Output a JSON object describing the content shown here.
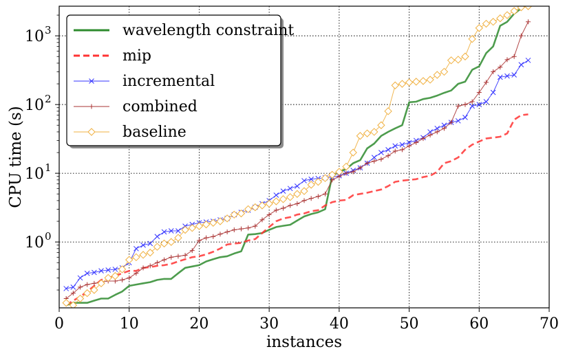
{
  "chart_data": {
    "type": "line",
    "title": "",
    "xlabel": "instances",
    "ylabel": "CPU time (s)",
    "xlim": [
      0,
      70
    ],
    "ylim": [
      0.11,
      2700
    ],
    "yscale": "log",
    "grid": true,
    "legend_position": "top-left",
    "x_ticks": [
      {
        "value": 0,
        "label": "0"
      },
      {
        "value": 10,
        "label": "10"
      },
      {
        "value": 20,
        "label": "20"
      },
      {
        "value": 30,
        "label": "30"
      },
      {
        "value": 40,
        "label": "40"
      },
      {
        "value": 50,
        "label": "50"
      },
      {
        "value": 60,
        "label": "60"
      },
      {
        "value": 70,
        "label": "70"
      }
    ],
    "y_ticks": [
      {
        "value": 1,
        "base": "10",
        "exp": "0"
      },
      {
        "value": 10,
        "base": "10",
        "exp": "1"
      },
      {
        "value": 100,
        "base": "10",
        "exp": "2"
      },
      {
        "value": 1000,
        "base": "10",
        "exp": "3"
      }
    ],
    "series": [
      {
        "name": "wavelength constraint",
        "color": "#2e8b2e",
        "style": "solid",
        "marker": "none",
        "x": [
          1,
          2,
          3,
          4,
          5,
          6,
          7,
          8,
          9,
          10,
          11,
          12,
          13,
          14,
          15,
          16,
          17,
          18,
          19,
          20,
          21,
          22,
          23,
          24,
          25,
          26,
          27,
          28,
          29,
          30,
          31,
          32,
          33,
          34,
          35,
          36,
          37,
          38,
          39,
          40,
          41,
          42,
          43,
          44,
          45,
          46,
          47,
          48,
          49,
          50,
          51,
          52,
          53,
          54,
          55,
          56,
          57,
          58,
          59,
          60,
          61,
          62,
          63,
          64,
          65,
          66
        ],
        "y": [
          0.12,
          0.13,
          0.13,
          0.13,
          0.14,
          0.15,
          0.15,
          0.17,
          0.19,
          0.23,
          0.24,
          0.25,
          0.26,
          0.28,
          0.29,
          0.29,
          0.35,
          0.42,
          0.44,
          0.46,
          0.52,
          0.56,
          0.6,
          0.62,
          0.68,
          0.73,
          1.28,
          1.3,
          1.35,
          1.5,
          1.65,
          1.72,
          1.78,
          2.05,
          2.35,
          2.55,
          2.7,
          3.0,
          9.2,
          10.5,
          11.5,
          14,
          15.5,
          23,
          27,
          35,
          40,
          45,
          50,
          108,
          110,
          120,
          125,
          135,
          148,
          160,
          200,
          215,
          320,
          360,
          560,
          700,
          1400,
          1600,
          2100,
          2500
        ]
      },
      {
        "name": "mip",
        "color": "#ff3333",
        "style": "dashed",
        "marker": "none",
        "x": [
          1,
          2,
          3,
          4,
          5,
          6,
          7,
          8,
          9,
          10,
          11,
          12,
          13,
          14,
          15,
          16,
          17,
          18,
          19,
          20,
          21,
          22,
          23,
          24,
          25,
          26,
          27,
          28,
          29,
          30,
          31,
          32,
          33,
          34,
          35,
          36,
          37,
          38,
          39,
          40,
          41,
          42,
          43,
          44,
          45,
          46,
          47,
          48,
          49,
          50,
          51,
          52,
          53,
          54,
          55,
          56,
          57,
          58,
          59,
          60,
          61,
          62,
          63,
          64,
          65,
          66,
          67
        ],
        "y": [
          0.12,
          0.14,
          0.16,
          0.19,
          0.23,
          0.28,
          0.3,
          0.32,
          0.35,
          0.38,
          0.38,
          0.42,
          0.43,
          0.45,
          0.46,
          0.48,
          0.52,
          0.56,
          0.6,
          0.62,
          0.66,
          0.72,
          0.8,
          0.92,
          0.95,
          0.97,
          1.05,
          1.1,
          1.35,
          1.65,
          2.0,
          2.2,
          2.3,
          2.5,
          2.6,
          2.8,
          2.9,
          3.4,
          3.8,
          4.0,
          4.1,
          4.8,
          5.0,
          5.2,
          5.5,
          5.8,
          6.5,
          7.5,
          7.8,
          8.0,
          8.2,
          8.8,
          9.2,
          10.5,
          14,
          15,
          17,
          22,
          26,
          29,
          32,
          33,
          34,
          38,
          60,
          70,
          72
        ]
      },
      {
        "name": "incremental",
        "color": "#3333ff",
        "style": "solid",
        "marker": "x",
        "x": [
          1,
          2,
          3,
          4,
          5,
          6,
          7,
          8,
          9,
          10,
          11,
          12,
          13,
          14,
          15,
          16,
          17,
          18,
          19,
          20,
          21,
          22,
          23,
          24,
          25,
          26,
          27,
          28,
          29,
          30,
          31,
          32,
          33,
          34,
          35,
          36,
          37,
          38,
          39,
          40,
          41,
          42,
          43,
          44,
          45,
          46,
          47,
          48,
          49,
          50,
          51,
          52,
          53,
          54,
          55,
          56,
          57,
          58,
          59,
          60,
          61,
          62,
          63,
          64,
          65,
          66,
          67
        ],
        "y": [
          0.21,
          0.22,
          0.3,
          0.35,
          0.36,
          0.38,
          0.39,
          0.4,
          0.42,
          0.5,
          0.8,
          0.9,
          0.95,
          1.2,
          1.4,
          1.45,
          1.45,
          1.7,
          1.8,
          1.9,
          1.95,
          2.0,
          2.1,
          2.2,
          2.5,
          2.7,
          2.9,
          3.2,
          3.6,
          4.0,
          4.8,
          5.5,
          6.0,
          6.5,
          7.8,
          8.2,
          8.4,
          8.6,
          8.8,
          9.2,
          10,
          11,
          12,
          14,
          17,
          20,
          22,
          25,
          26,
          28,
          30,
          33,
          40,
          45,
          50,
          55,
          58,
          65,
          95,
          100,
          110,
          150,
          250,
          260,
          270,
          380,
          440
        ]
      },
      {
        "name": "combined",
        "color": "#aa3333",
        "style": "solid",
        "marker": "+",
        "x": [
          1,
          2,
          3,
          4,
          5,
          6,
          7,
          8,
          9,
          10,
          11,
          12,
          13,
          14,
          15,
          16,
          17,
          18,
          19,
          20,
          21,
          22,
          23,
          24,
          25,
          26,
          27,
          28,
          29,
          30,
          31,
          32,
          33,
          34,
          35,
          36,
          37,
          38,
          39,
          40,
          41,
          42,
          43,
          44,
          45,
          46,
          47,
          48,
          49,
          50,
          51,
          52,
          53,
          54,
          55,
          56,
          57,
          58,
          59,
          60,
          61,
          62,
          63,
          64,
          65,
          66,
          67
        ],
        "y": [
          0.15,
          0.18,
          0.22,
          0.24,
          0.25,
          0.26,
          0.27,
          0.27,
          0.28,
          0.3,
          0.35,
          0.42,
          0.45,
          0.5,
          0.55,
          0.6,
          0.62,
          0.64,
          0.75,
          1.05,
          1.15,
          1.2,
          1.3,
          1.4,
          1.5,
          1.55,
          1.6,
          1.7,
          2.1,
          2.5,
          2.9,
          3.1,
          3.4,
          3.6,
          4.0,
          4.3,
          4.6,
          5.0,
          8.0,
          9.0,
          10.0,
          10.5,
          12,
          14,
          15,
          16,
          18,
          21,
          22,
          25,
          28,
          32,
          36,
          40,
          45,
          55,
          95,
          100,
          110,
          150,
          210,
          300,
          350,
          450,
          500,
          1000,
          1600
        ]
      },
      {
        "name": "baseline",
        "color": "#f0b040",
        "style": "solid",
        "marker": "diamond",
        "x": [
          1,
          2,
          3,
          4,
          5,
          6,
          7,
          8,
          9,
          10,
          11,
          12,
          13,
          14,
          15,
          16,
          17,
          18,
          19,
          20,
          21,
          22,
          23,
          24,
          25,
          26,
          27,
          28,
          29,
          30,
          31,
          32,
          33,
          34,
          35,
          36,
          37,
          38,
          39,
          40,
          41,
          42,
          43,
          44,
          45,
          46,
          47,
          48,
          49,
          50,
          51,
          52,
          53,
          54,
          55,
          56,
          57,
          58,
          59,
          60,
          61,
          62,
          63,
          64,
          65,
          66,
          67
        ],
        "y": [
          0.13,
          0.12,
          0.15,
          0.18,
          0.2,
          0.25,
          0.3,
          0.32,
          0.4,
          0.55,
          0.6,
          0.65,
          0.7,
          0.85,
          0.95,
          1.0,
          1.15,
          1.5,
          1.6,
          1.7,
          1.8,
          1.9,
          2.0,
          2.2,
          2.5,
          2.6,
          3.0,
          3.2,
          3.4,
          3.6,
          3.9,
          4.2,
          4.5,
          5.0,
          5.5,
          6.8,
          7.5,
          8.5,
          9.5,
          10.5,
          12.5,
          20,
          35,
          38,
          40,
          50,
          80,
          190,
          200,
          210,
          215,
          220,
          230,
          270,
          300,
          440,
          450,
          500,
          900,
          1300,
          1500,
          1600,
          1800,
          2000,
          2300,
          2600,
          2700
        ]
      }
    ]
  }
}
